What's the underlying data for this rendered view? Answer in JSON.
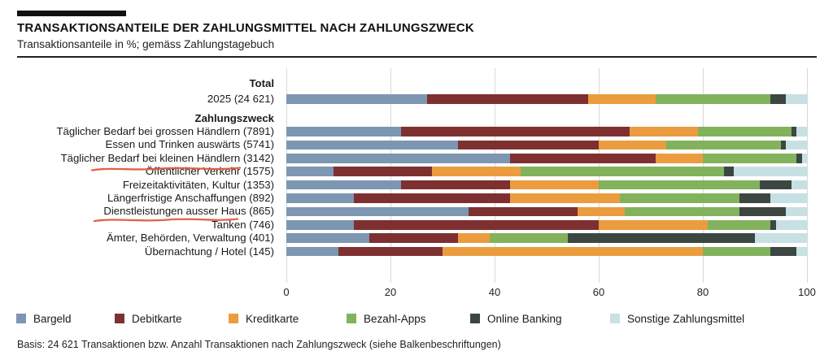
{
  "header": {
    "title": "TRANSAKTIONSANTEILE DER ZAHLUNGSMITTEL NACH ZAHLUNGSZWECK",
    "subtitle": "Transaktionsanteile in %; gemäss Zahlungstagebuch"
  },
  "footer": {
    "text": "Basis: 24 621 Transaktionen bzw. Anzahl Transaktionen nach Zahlungszweck (siehe Balkenbeschriftungen)"
  },
  "legend": {
    "items": [
      {
        "label": "Bargeld",
        "color": "#7d96b2"
      },
      {
        "label": "Debitkarte",
        "color": "#7e3030"
      },
      {
        "label": "Kreditkarte",
        "color": "#eb9c3e"
      },
      {
        "label": "Bezahl-Apps",
        "color": "#83b25c"
      },
      {
        "label": "Online Banking",
        "color": "#3c4742"
      },
      {
        "label": "Sonstige Zahlungsmittel",
        "color": "#c7e0e4"
      }
    ]
  },
  "chart_data": {
    "type": "bar",
    "orientation": "horizontal",
    "stacked": true,
    "title": "Transaktionsanteile der Zahlungsmittel nach Zahlungszweck",
    "xlabel": "Transaktionsanteile in %",
    "xlim": [
      0,
      100
    ],
    "x_ticks": [
      0,
      20,
      40,
      60,
      80,
      100
    ],
    "grid": true,
    "legend_position": "bottom",
    "series_names": [
      "Bargeld",
      "Debitkarte",
      "Kreditkarte",
      "Bezahl-Apps",
      "Online Banking",
      "Sonstige Zahlungsmittel"
    ],
    "series_colors": [
      "#7d96b2",
      "#7e3030",
      "#eb9c3e",
      "#83b25c",
      "#3c4742",
      "#c7e0e4"
    ],
    "groups": [
      {
        "header": "Total",
        "rows": [
          {
            "label": "2025 (24 621)",
            "values": [
              27,
              31,
              13,
              22,
              3,
              4
            ]
          }
        ]
      },
      {
        "header": "Zahlungszweck",
        "rows": [
          {
            "label": "Täglicher Bedarf bei grossen Händlern (7891)",
            "values": [
              22,
              44,
              13,
              18,
              1,
              2
            ]
          },
          {
            "label": "Essen und Trinken auswärts (5741)",
            "values": [
              33,
              27,
              13,
              22,
              1,
              4
            ]
          },
          {
            "label": "Täglicher Bedarf bei kleinen Händlern (3142)",
            "values": [
              43,
              28,
              9,
              18,
              1,
              1
            ]
          },
          {
            "label": "Öffentlicher Verkehr (1575)",
            "values": [
              9,
              19,
              17,
              39,
              2,
              14
            ]
          },
          {
            "label": "Freizeitaktivitäten, Kultur (1353)",
            "values": [
              22,
              21,
              17,
              31,
              6,
              3
            ]
          },
          {
            "label": "Längerfristige Anschaffungen (892)",
            "values": [
              13,
              30,
              21,
              23,
              6,
              7
            ]
          },
          {
            "label": "Dienstleistungen ausser Haus (865)",
            "values": [
              35,
              21,
              9,
              22,
              9,
              4
            ]
          },
          {
            "label": "Tanken (746)",
            "values": [
              13,
              47,
              21,
              12,
              1,
              6
            ]
          },
          {
            "label": "Ämter, Behörden, Verwaltung (401)",
            "values": [
              16,
              17,
              6,
              15,
              36,
              10
            ]
          },
          {
            "label": "Übernachtung / Hotel (145)",
            "values": [
              10,
              20,
              50,
              13,
              5,
              2
            ]
          }
        ]
      }
    ],
    "annotations": [
      {
        "type": "hand-drawn-underline",
        "target": "Täglicher Bedarf bei kleinen Händlern (3142)",
        "color": "#df5a3e"
      },
      {
        "type": "hand-drawn-underline",
        "target": "Dienstleistungen ausser Haus (865)",
        "color": "#df5a3e"
      }
    ]
  }
}
